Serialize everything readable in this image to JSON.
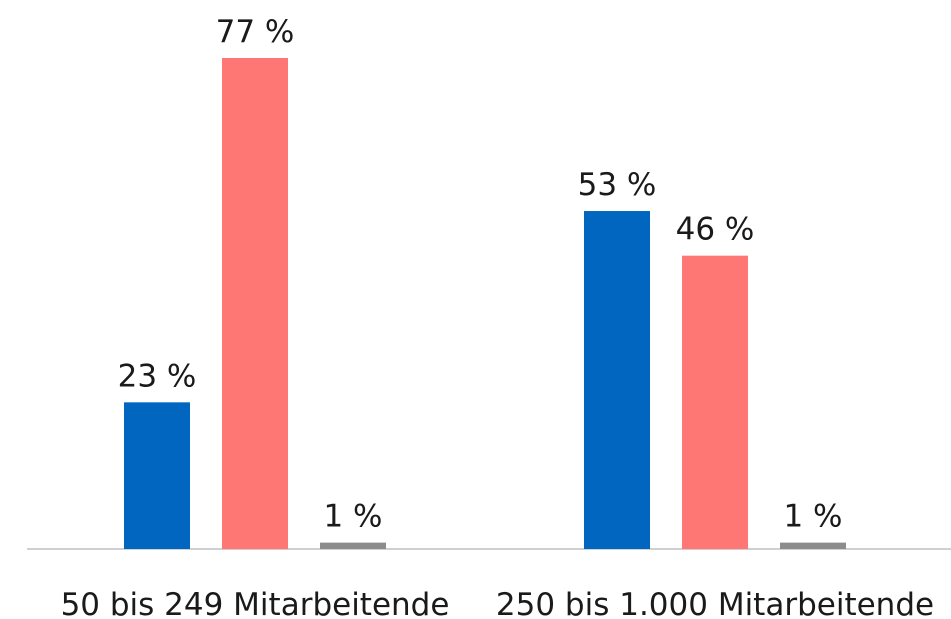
{
  "colors": {
    "series1": "#0066BF",
    "series2": "#FF7774",
    "series3": "#8C8C8C",
    "axis": "#D0D0D0",
    "text": "#1A1A1A"
  },
  "chart_data": {
    "type": "bar",
    "categories": [
      "50 bis 249 Mitarbeitende",
      "250 bis 1.000 Mitarbeitende"
    ],
    "series": [
      {
        "values": [
          23,
          53
        ],
        "labels": [
          "23 %",
          "53 %"
        ],
        "color": "#0066BF"
      },
      {
        "values": [
          77,
          46
        ],
        "labels": [
          "77 %",
          "46 %"
        ],
        "color": "#FF7774"
      },
      {
        "values": [
          1,
          1
        ],
        "labels": [
          "1 %",
          "1 %"
        ],
        "color": "#8C8C8C"
      }
    ],
    "ylim": [
      0,
      80
    ],
    "grid": false,
    "legend": "none",
    "title": "",
    "xlabel": "",
    "ylabel": ""
  }
}
